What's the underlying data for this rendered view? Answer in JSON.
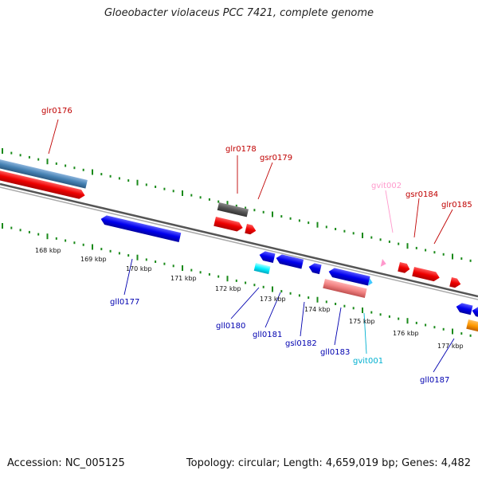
{
  "title": "Gloeobacter violaceus PCC 7421, complete genome",
  "footer": {
    "accession": "Accession: NC_005125",
    "summary": "Topology: circular; Length: 4,659,019 bp; Genes: 4,482"
  },
  "colors": {
    "backbone": "#777777",
    "tick_marks": "#1a8a1a",
    "forward_label": "#c00000",
    "reverse_label": "#0000b0",
    "cds_forward": "#ff0000",
    "cds_reverse": "#0000ff",
    "rna": "#ff99cc",
    "trna": "#00c8ff"
  },
  "scale_labels": [
    "168 kbp",
    "169 kbp",
    "170 kbp",
    "171 kbp",
    "172 kbp",
    "173 kbp",
    "174 kbp",
    "175 kbp",
    "176 kbp",
    "177 kbp"
  ],
  "gene_labels": [
    "glr0176",
    "glr0178",
    "gsr0179",
    "gvit002",
    "gsr0184",
    "glr0185",
    "gll0177",
    "gll0180",
    "gll0181",
    "gsl0182",
    "gll0183",
    "gvit001",
    "gll0187"
  ]
}
